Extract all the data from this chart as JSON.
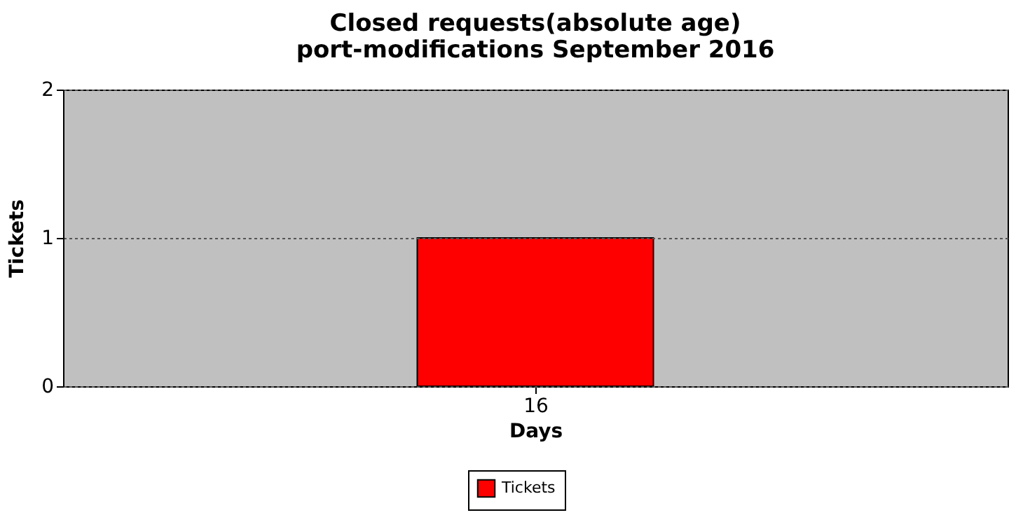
{
  "chart_data": {
    "type": "bar",
    "title": "Closed requests(absolute age)\nport-modifications September 2016",
    "xlabel": "Days",
    "ylabel": "Tickets",
    "categories": [
      "16"
    ],
    "series": [
      {
        "name": "Tickets",
        "color": "#ff0000",
        "values": [
          1
        ]
      }
    ],
    "ylim": [
      0,
      2
    ],
    "yticks": [
      0,
      1,
      2
    ],
    "grid": "y",
    "legend": "bottom"
  }
}
